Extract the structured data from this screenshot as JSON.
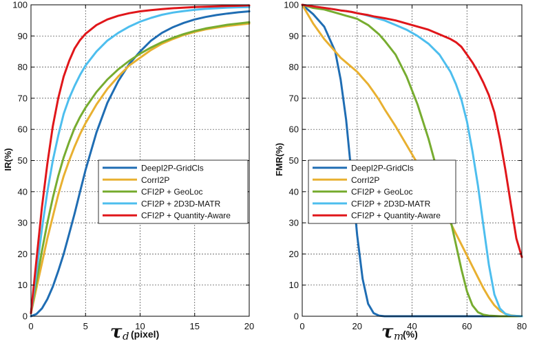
{
  "chart_data": [
    {
      "type": "line",
      "ylabel": "IR(%)",
      "xlabel": {
        "symbol": "τ",
        "subscript": "d",
        "unit": "(pixel)"
      },
      "xlim": [
        0,
        20
      ],
      "ylim": [
        0,
        100
      ],
      "xticks": [
        "0",
        "5",
        "10",
        "15",
        "20"
      ],
      "yticks": [
        "0",
        "10",
        "20",
        "30",
        "40",
        "50",
        "60",
        "70",
        "80",
        "90",
        "100"
      ],
      "grid": true,
      "legend_position": "center-right",
      "x": [
        0,
        0.5,
        1,
        1.5,
        2,
        2.5,
        3,
        3.5,
        4,
        4.5,
        5,
        6,
        7,
        8,
        9,
        10,
        11,
        12,
        13,
        14,
        15,
        16,
        17,
        18,
        19,
        20
      ],
      "series": [
        {
          "name": "DeepI2P-GridCls",
          "color": "#1f6db3",
          "values": [
            0,
            0.7,
            2.5,
            5.5,
            9.5,
            14.5,
            20,
            26.5,
            33,
            40,
            47,
            59,
            68.5,
            75.5,
            81,
            85,
            88.5,
            91,
            92.8,
            94.2,
            95.3,
            96.1,
            96.7,
            97.2,
            97.6,
            97.9
          ]
        },
        {
          "name": "CorrI2P",
          "color": "#e8b030",
          "values": [
            1,
            9,
            17,
            25,
            32,
            39,
            45,
            50,
            54.5,
            58.5,
            62,
            68,
            73,
            77,
            80.5,
            83,
            85.5,
            87.5,
            89,
            90.3,
            91.3,
            92.1,
            92.7,
            93.2,
            93.6,
            94
          ]
        },
        {
          "name": "CFI2P + GeoLoc",
          "color": "#77ac30",
          "values": [
            1,
            11,
            21,
            30,
            38,
            45,
            51,
            56,
            60.5,
            64,
            67,
            72,
            76,
            79.3,
            82,
            84.3,
            86.3,
            88,
            89.4,
            90.6,
            91.6,
            92.4,
            93,
            93.6,
            94,
            94.4
          ]
        },
        {
          "name": "CFI2P + 2D3D-MATR",
          "color": "#4dbeee",
          "values": [
            1,
            14,
            28,
            40,
            50,
            58,
            65,
            70,
            74,
            77.5,
            80.5,
            85,
            88.5,
            91,
            93,
            94.6,
            95.8,
            96.8,
            97.5,
            98,
            98.4,
            98.7,
            98.9,
            99.1,
            99.2,
            99.3
          ]
        },
        {
          "name": "CFI2P + Quantity-Aware",
          "color": "#e0161a",
          "values": [
            1,
            18,
            35,
            49,
            61,
            70,
            77,
            82,
            86,
            88.7,
            90.7,
            93.5,
            95.3,
            96.5,
            97.3,
            97.9,
            98.3,
            98.6,
            98.9,
            99.1,
            99.3,
            99.4,
            99.5,
            99.6,
            99.7,
            99.8
          ]
        }
      ]
    },
    {
      "type": "line",
      "ylabel": "FMR(%)",
      "xlabel": {
        "symbol": "τ",
        "subscript": "m",
        "unit": "(%)"
      },
      "xlim": [
        0,
        80
      ],
      "ylim": [
        0,
        100
      ],
      "xticks": [
        "0",
        "20",
        "40",
        "60",
        "80"
      ],
      "yticks": [
        "0",
        "10",
        "20",
        "30",
        "40",
        "50",
        "60",
        "70",
        "80",
        "90",
        "100"
      ],
      "grid": true,
      "legend_position": "center-right",
      "x": [
        0,
        4,
        8,
        12,
        14,
        16,
        18,
        20,
        22,
        24,
        26,
        28,
        30,
        34,
        38,
        42,
        46,
        50,
        54,
        56,
        58,
        60,
        62,
        64,
        66,
        68,
        70,
        72,
        74,
        76,
        78,
        80
      ],
      "series": [
        {
          "name": "DeepI2P-GridCls",
          "color": "#1f6db3",
          "values": [
            100,
            97,
            93,
            85,
            76,
            63,
            45,
            26,
            12,
            4,
            1,
            0.2,
            0,
            0,
            0,
            0,
            0,
            0,
            0,
            0,
            0,
            0,
            0,
            0,
            0,
            0,
            0,
            0,
            0,
            0,
            0,
            0
          ]
        },
        {
          "name": "CorrI2P",
          "color": "#e8b030",
          "values": [
            100,
            94,
            89,
            85,
            83,
            81.5,
            80,
            78.5,
            76.5,
            74.5,
            72,
            69.5,
            66.5,
            61,
            55,
            49,
            42.5,
            36,
            30,
            26.5,
            23,
            19.5,
            16,
            12.5,
            9,
            6,
            3.5,
            1.8,
            0.8,
            0.3,
            0.1,
            0
          ]
        },
        {
          "name": "CFI2P + GeoLoc",
          "color": "#77ac30",
          "values": [
            100,
            99,
            98.5,
            97.5,
            97,
            96.5,
            96,
            95.5,
            94.5,
            93.5,
            92,
            90.5,
            88.5,
            84,
            77,
            68,
            57,
            44,
            31,
            23,
            15,
            8,
            3.5,
            1.3,
            0.5,
            0.2,
            0.1,
            0,
            0,
            0,
            0,
            0
          ]
        },
        {
          "name": "CFI2P + 2D3D-MATR",
          "color": "#4dbeee",
          "values": [
            100,
            99.5,
            99,
            98.5,
            98.2,
            98,
            97.7,
            97.3,
            97,
            96.5,
            96,
            95.5,
            95,
            93.5,
            92,
            90,
            87.5,
            84,
            78.5,
            74.5,
            69.5,
            62.5,
            53,
            42,
            29,
            16.5,
            7,
            2.5,
            0.8,
            0.2,
            0.1,
            0
          ]
        },
        {
          "name": "CFI2P + Quantity-Aware",
          "color": "#e0161a",
          "values": [
            100,
            99.5,
            99,
            98.5,
            98.2,
            98,
            97.7,
            97.3,
            97,
            96.7,
            96.3,
            96,
            95.7,
            95,
            94,
            93,
            92,
            90.5,
            89,
            88,
            86.5,
            84,
            81.5,
            78.5,
            75,
            71,
            65.5,
            57,
            47,
            36,
            25,
            19
          ]
        }
      ]
    }
  ]
}
